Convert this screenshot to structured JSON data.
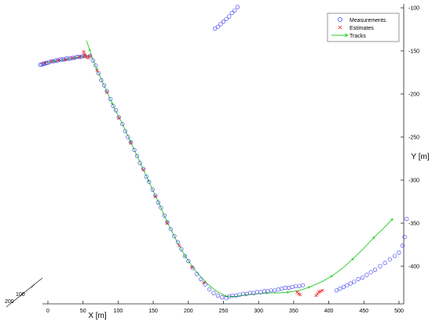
{
  "chart_data": {
    "type": "scatter",
    "x_axis": {
      "label": "X [m]",
      "range": [
        -15,
        515
      ],
      "ticks": [
        0,
        50,
        100,
        150,
        200,
        250,
        300,
        350,
        400,
        450,
        500
      ]
    },
    "y_axis": {
      "label": "Y [m]",
      "range": [
        -95,
        -445
      ],
      "ticks": [
        -100,
        -150,
        -200,
        -250,
        -300,
        -350,
        -400
      ]
    },
    "z_axis_ticks": [
      "100",
      "200"
    ],
    "grid": false,
    "legend": {
      "position": "top-right",
      "entries": [
        {
          "label": "Measurements",
          "marker": "circle",
          "color": "#3333ee"
        },
        {
          "label": "Estimates",
          "marker": "x",
          "color": "#ee2222"
        },
        {
          "label": "Tracks",
          "marker": "line-arrow",
          "color": "#22cc22"
        }
      ]
    },
    "series": [
      {
        "name": "Measurements",
        "points": [
          [
            -11,
            -166
          ],
          [
            -9,
            -166
          ],
          [
            -7,
            -165
          ],
          [
            -5,
            -165
          ],
          [
            -3,
            -164
          ],
          [
            -1,
            -164
          ],
          [
            2,
            -163
          ],
          [
            5,
            -162
          ],
          [
            8,
            -162
          ],
          [
            11,
            -161
          ],
          [
            14,
            -161
          ],
          [
            17,
            -160
          ],
          [
            20,
            -160
          ],
          [
            23,
            -160
          ],
          [
            26,
            -159
          ],
          [
            29,
            -159
          ],
          [
            32,
            -159
          ],
          [
            35,
            -158
          ],
          [
            38,
            -158
          ],
          [
            41,
            -157
          ],
          [
            44,
            -157
          ],
          [
            47,
            -157
          ],
          [
            50,
            -156
          ],
          [
            53,
            -156
          ],
          [
            60,
            -156
          ],
          [
            64,
            -161
          ],
          [
            68,
            -167
          ],
          [
            72,
            -176
          ],
          [
            76,
            -184
          ],
          [
            80,
            -190
          ],
          [
            84,
            -197
          ],
          [
            89,
            -206
          ],
          [
            93,
            -214
          ],
          [
            97,
            -219
          ],
          [
            101,
            -227
          ],
          [
            106,
            -235
          ],
          [
            110,
            -243
          ],
          [
            114,
            -250
          ],
          [
            118,
            -256
          ],
          [
            123,
            -265
          ],
          [
            127,
            -272
          ],
          [
            131,
            -280
          ],
          [
            136,
            -287
          ],
          [
            140,
            -296
          ],
          [
            144,
            -302
          ],
          [
            149,
            -311
          ],
          [
            153,
            -318
          ],
          [
            157,
            -326
          ],
          [
            161,
            -332
          ],
          [
            166,
            -341
          ],
          [
            170,
            -349
          ],
          [
            175,
            -357
          ],
          [
            180,
            -365
          ],
          [
            185,
            -372
          ],
          [
            190,
            -380
          ],
          [
            195,
            -388
          ],
          [
            200,
            -394
          ],
          [
            206,
            -402
          ],
          [
            212,
            -409
          ],
          [
            218,
            -415
          ],
          [
            224,
            -421
          ],
          [
            230,
            -427
          ],
          [
            236,
            -431
          ],
          [
            242,
            -434
          ],
          [
            248,
            -436
          ],
          [
            254,
            -437
          ],
          [
            238,
            -124
          ],
          [
            242,
            -122
          ],
          [
            246,
            -119
          ],
          [
            250,
            -116
          ],
          [
            254,
            -113
          ],
          [
            258,
            -110
          ],
          [
            262,
            -106
          ],
          [
            266,
            -103
          ],
          [
            270,
            -99
          ],
          [
            258,
            -435
          ],
          [
            263,
            -434
          ],
          [
            268,
            -434
          ],
          [
            273,
            -433
          ],
          [
            278,
            -432
          ],
          [
            283,
            -432
          ],
          [
            288,
            -431
          ],
          [
            293,
            -431
          ],
          [
            298,
            -430
          ],
          [
            303,
            -430
          ],
          [
            308,
            -429
          ],
          [
            313,
            -429
          ],
          [
            318,
            -428
          ],
          [
            323,
            -428
          ],
          [
            328,
            -427
          ],
          [
            333,
            -426
          ],
          [
            338,
            -425
          ],
          [
            343,
            -425
          ],
          [
            348,
            -424
          ],
          [
            353,
            -423
          ],
          [
            358,
            -423
          ],
          [
            363,
            -422
          ],
          [
            411,
            -428
          ],
          [
            416,
            -426
          ],
          [
            421,
            -424
          ],
          [
            426,
            -422
          ],
          [
            431,
            -420
          ],
          [
            436,
            -418
          ],
          [
            442,
            -415
          ],
          [
            448,
            -413
          ],
          [
            454,
            -410
          ],
          [
            460,
            -407
          ],
          [
            466,
            -404
          ],
          [
            473,
            -400
          ],
          [
            480,
            -396
          ],
          [
            487,
            -392
          ],
          [
            494,
            -388
          ],
          [
            500,
            -384
          ],
          [
            505,
            -376
          ],
          [
            508,
            -366
          ],
          [
            511,
            -345
          ]
        ]
      },
      {
        "name": "Estimates",
        "points": [
          [
            -5,
            -164
          ],
          [
            5,
            -162
          ],
          [
            15,
            -161
          ],
          [
            25,
            -160
          ],
          [
            35,
            -158
          ],
          [
            45,
            -157
          ],
          [
            51,
            -151
          ],
          [
            52,
            -154
          ],
          [
            53,
            -156
          ],
          [
            55,
            -157
          ],
          [
            57,
            -158
          ],
          [
            60,
            -156
          ],
          [
            70,
            -173
          ],
          [
            84,
            -198
          ],
          [
            101,
            -228
          ],
          [
            118,
            -257
          ],
          [
            136,
            -288
          ],
          [
            153,
            -319
          ],
          [
            170,
            -350
          ],
          [
            187,
            -376
          ],
          [
            205,
            -401
          ],
          [
            222,
            -419
          ],
          [
            355,
            -430
          ],
          [
            357,
            -432
          ],
          [
            359,
            -433
          ],
          [
            382,
            -434
          ],
          [
            384,
            -432
          ],
          [
            386,
            -430
          ],
          [
            388,
            -429
          ],
          [
            391,
            -428
          ]
        ]
      },
      {
        "name": "Tracks",
        "lines": [
          [
            [
              -5,
              -164
            ],
            [
              10,
              -162
            ],
            [
              25,
              -160
            ],
            [
              40,
              -158
            ],
            [
              52,
              -156
            ],
            [
              60,
              -156
            ]
          ],
          [
            [
              55,
              -138
            ],
            [
              60,
              -150
            ],
            [
              64,
              -160
            ],
            [
              70,
              -172
            ],
            [
              80,
              -190
            ],
            [
              92,
              -212
            ],
            [
              105,
              -233
            ],
            [
              118,
              -256
            ],
            [
              131,
              -279
            ],
            [
              144,
              -302
            ],
            [
              157,
              -325
            ],
            [
              170,
              -349
            ],
            [
              183,
              -370
            ],
            [
              196,
              -389
            ],
            [
              210,
              -405
            ],
            [
              225,
              -419
            ],
            [
              240,
              -429
            ],
            [
              254,
              -435
            ],
            [
              268,
              -435
            ],
            [
              283,
              -433
            ],
            [
              298,
              -432
            ],
            [
              313,
              -431
            ],
            [
              328,
              -431
            ],
            [
              343,
              -430
            ],
            [
              358,
              -428
            ],
            [
              373,
              -424
            ],
            [
              390,
              -418
            ],
            [
              405,
              -411
            ],
            [
              420,
              -402
            ],
            [
              435,
              -391
            ],
            [
              450,
              -379
            ],
            [
              465,
              -366
            ],
            [
              478,
              -356
            ],
            [
              491,
              -345
            ]
          ]
        ]
      }
    ]
  }
}
